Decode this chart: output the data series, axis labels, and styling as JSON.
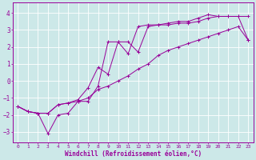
{
  "xlabel": "Windchill (Refroidissement éolien,°C)",
  "bg_color": "#cce8e8",
  "line_color": "#990099",
  "grid_color": "#ffffff",
  "xlim": [
    -0.5,
    23.5
  ],
  "ylim": [
    -3.6,
    4.6
  ],
  "xticks": [
    0,
    1,
    2,
    3,
    4,
    5,
    6,
    7,
    8,
    9,
    10,
    11,
    12,
    13,
    14,
    15,
    16,
    17,
    18,
    19,
    20,
    21,
    22,
    23
  ],
  "yticks": [
    -3,
    -2,
    -1,
    0,
    1,
    2,
    3,
    4
  ],
  "series1_x": [
    0,
    1,
    2,
    3,
    4,
    5,
    6,
    7,
    8,
    9,
    10,
    11,
    12,
    13,
    14,
    15,
    16,
    17,
    18,
    19,
    20,
    21,
    22,
    23
  ],
  "series1_y": [
    -1.5,
    -1.8,
    -1.9,
    -1.9,
    -1.4,
    -1.3,
    -1.2,
    -1.0,
    -0.5,
    -0.3,
    0.0,
    0.3,
    0.7,
    1.0,
    1.5,
    1.8,
    2.0,
    2.2,
    2.4,
    2.6,
    2.8,
    3.0,
    3.2,
    2.4
  ],
  "series2_x": [
    0,
    1,
    2,
    3,
    4,
    5,
    6,
    7,
    8,
    9,
    10,
    11,
    12,
    13,
    14,
    15,
    16,
    17,
    18,
    19,
    20,
    21,
    22,
    23
  ],
  "series2_y": [
    -1.5,
    -1.8,
    -1.9,
    -1.9,
    -1.4,
    -1.3,
    -1.1,
    -0.4,
    0.8,
    0.4,
    2.3,
    2.3,
    1.7,
    3.2,
    3.3,
    3.3,
    3.4,
    3.4,
    3.5,
    3.7,
    3.8,
    3.8,
    3.8,
    3.8
  ],
  "series3_x": [
    0,
    1,
    2,
    3,
    4,
    5,
    6,
    7,
    8,
    9,
    10,
    11,
    12,
    13,
    14,
    15,
    16,
    17,
    18,
    19,
    20,
    21,
    22,
    23
  ],
  "series3_y": [
    -1.5,
    -1.8,
    -1.9,
    -3.1,
    -2.0,
    -1.9,
    -1.2,
    -1.2,
    -0.3,
    2.3,
    2.3,
    1.6,
    3.2,
    3.3,
    3.3,
    3.4,
    3.5,
    3.5,
    3.7,
    3.9,
    3.8,
    3.8,
    3.8,
    2.4
  ]
}
